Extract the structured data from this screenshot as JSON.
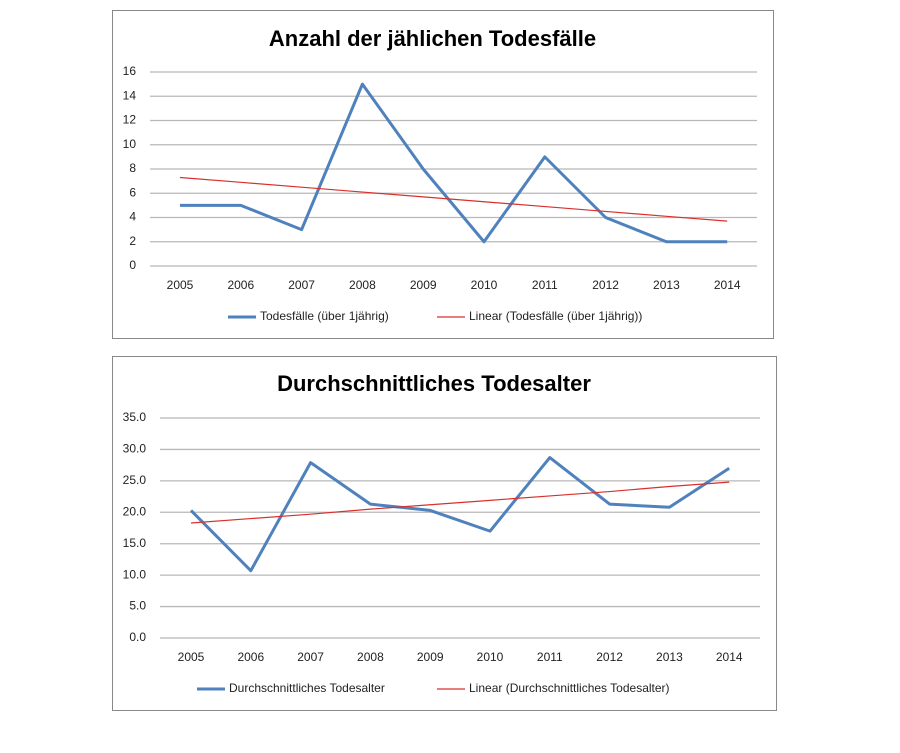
{
  "chart_data": [
    {
      "type": "line",
      "title": "Anzahl der jählichen Todesfälle",
      "categories": [
        "2005",
        "2006",
        "2007",
        "2008",
        "2009",
        "2010",
        "2011",
        "2012",
        "2013",
        "2014"
      ],
      "series": [
        {
          "name": "Todesfälle (über 1jährig)",
          "color": "#4f81bd",
          "values": [
            5,
            5,
            3,
            15,
            8,
            2,
            9,
            4,
            2,
            2
          ]
        },
        {
          "name": "Linear (Todesfälle (über 1jährig))",
          "color": "#d9302c",
          "values": [
            7.3,
            6.9,
            6.5,
            6.1,
            5.7,
            5.3,
            4.9,
            4.5,
            4.1,
            3.7
          ]
        }
      ],
      "ylim": [
        0,
        16
      ],
      "yticks": [
        0,
        2,
        4,
        6,
        8,
        10,
        12,
        14,
        16
      ],
      "grid": true,
      "legend": "bottom"
    },
    {
      "type": "line",
      "title": "Durchschnittliches Todesalter",
      "categories": [
        "2005",
        "2006",
        "2007",
        "2008",
        "2009",
        "2010",
        "2011",
        "2012",
        "2013",
        "2014"
      ],
      "series": [
        {
          "name": "Durchschnittliches Todesalter",
          "color": "#4f81bd",
          "values": [
            20.3,
            10.7,
            27.9,
            21.3,
            20.3,
            17.0,
            28.7,
            21.3,
            20.8,
            27.0
          ]
        },
        {
          "name": "Linear (Durchschnittliches Todesalter)",
          "color": "#d9302c",
          "values": [
            18.3,
            19.0,
            19.7,
            20.5,
            21.2,
            21.9,
            22.6,
            23.3,
            24.1,
            24.8
          ]
        }
      ],
      "ylim": [
        0,
        35
      ],
      "yticks": [
        {
          "value": 0,
          "label": "0.0"
        },
        {
          "value": 5,
          "label": "5.0"
        },
        {
          "value": 10,
          "label": "10.0"
        },
        {
          "value": 15,
          "label": "15.0"
        },
        {
          "value": 20,
          "label": "20.0"
        },
        {
          "value": 25,
          "label": "25.0"
        },
        {
          "value": 30,
          "label": "30.0"
        },
        {
          "value": 35,
          "label": "35.0"
        }
      ],
      "grid": true,
      "legend": "bottom"
    }
  ]
}
